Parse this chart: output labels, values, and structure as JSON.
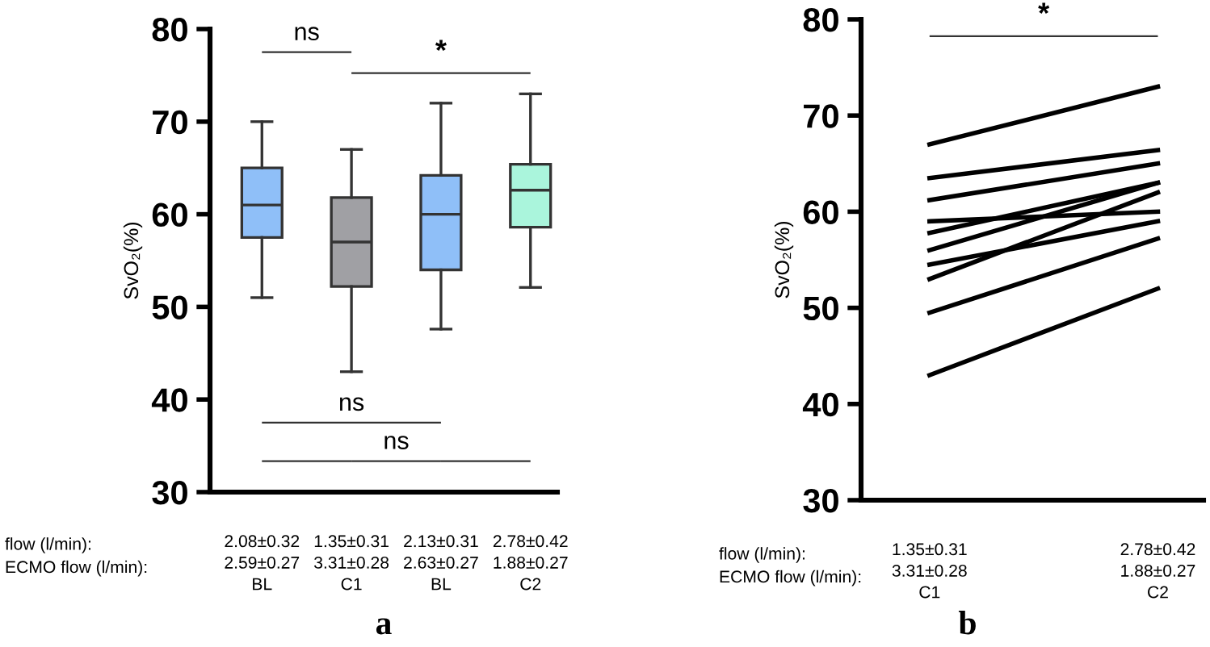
{
  "chart_data": [
    {
      "type": "box",
      "title": "a",
      "ylabel": "SvO₂(%)",
      "categories": [
        "2.08±0.32\n2.59±0.27\nBL",
        "1.35±0.31\n3.31±0.28\nC1",
        "2.13±0.31\n2.63±0.27\nBL",
        "2.78±0.42\n1.88±0.27\nC2"
      ],
      "boxes": [
        {
          "low": 51,
          "q1": 57.5,
          "median": 61,
          "q3": 65,
          "high": 70
        },
        {
          "low": 43,
          "q1": 52.2,
          "median": 57,
          "q3": 61.8,
          "high": 67
        },
        {
          "low": 47.6,
          "q1": 54,
          "median": 60,
          "q3": 64.2,
          "high": 72
        },
        {
          "low": 52.1,
          "q1": 58.6,
          "median": 62.6,
          "q3": 65.4,
          "high": 73
        }
      ],
      "colors": [
        "#8fbff8",
        "#a0a0a4",
        "#8fbff8",
        "#aaf5dc"
      ],
      "ylim": [
        30,
        80
      ],
      "yticks": [
        30,
        40,
        50,
        60,
        70,
        80
      ],
      "grid": false,
      "legend": false,
      "annotations": [
        "ns",
        "*",
        "ns",
        "ns",
        "flow (l/min):",
        "ECMO flow (l/min):"
      ]
    },
    {
      "type": "line",
      "title": "b",
      "ylabel": "SvO₂(%)",
      "categories": [
        "1.35±0.31\n3.31±0.28\nC1",
        "2.78±0.42\n1.88±0.27\nC2"
      ],
      "series": [
        {
          "color": "#000000",
          "values": [
            67,
            73
          ]
        },
        {
          "color": "#000000",
          "values": [
            63.5,
            66.4
          ]
        },
        {
          "color": "#000000",
          "values": [
            61.2,
            65
          ]
        },
        {
          "color": "#000000",
          "values": [
            59,
            60
          ]
        },
        {
          "color": "#000000",
          "values": [
            57.8,
            63
          ]
        },
        {
          "color": "#000000",
          "values": [
            56,
            63
          ]
        },
        {
          "color": "#000000",
          "values": [
            54.5,
            59
          ]
        },
        {
          "color": "#000000",
          "values": [
            53,
            62
          ]
        },
        {
          "color": "#000000",
          "values": [
            49.5,
            57.2
          ]
        },
        {
          "color": "#000000",
          "values": [
            43,
            52
          ]
        }
      ],
      "ylim": [
        30,
        80
      ],
      "yticks": [
        30,
        40,
        50,
        60,
        70,
        80
      ],
      "grid": false,
      "legend": false,
      "marker": "none",
      "line_style": "solid",
      "annotations": [
        "*",
        "flow (l/min):",
        "ECMO flow (l/min):"
      ]
    }
  ]
}
